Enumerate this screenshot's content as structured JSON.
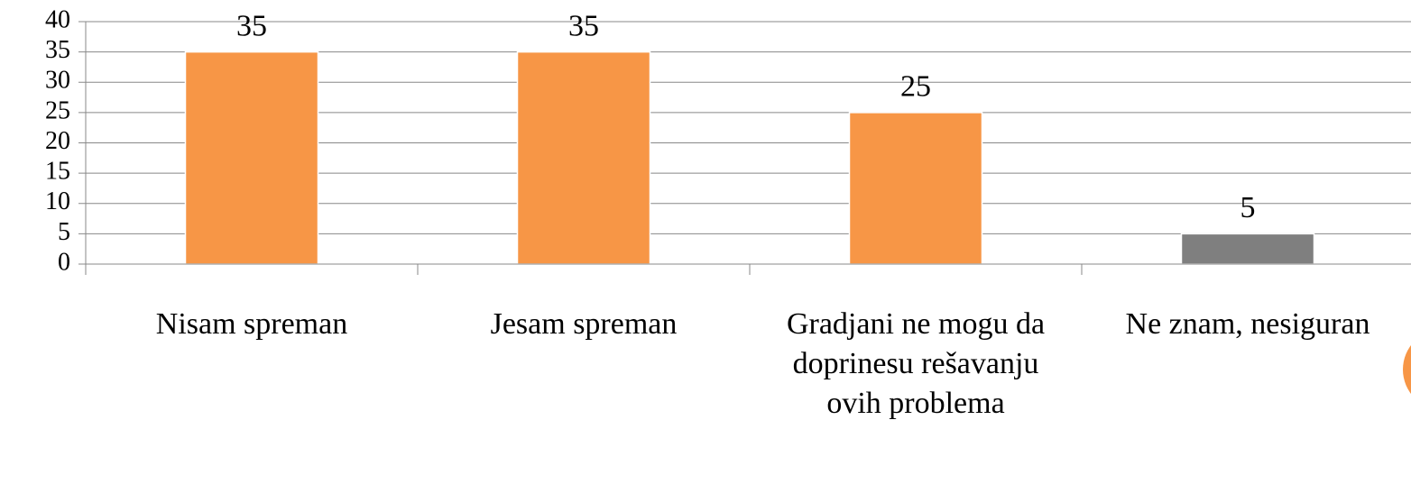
{
  "chart_data": {
    "type": "bar",
    "categories": [
      "Nisam spreman",
      "Jesam spreman",
      "Gradjani ne mogu da doprinesu rešavanju ovih problema",
      "Ne znam, nesiguran"
    ],
    "values": [
      35,
      35,
      25,
      5
    ],
    "colors": [
      "#F79646",
      "#F79646",
      "#F79646",
      "#7F7F7F"
    ],
    "ylim": [
      0,
      40
    ],
    "yticks": [
      0,
      5,
      10,
      15,
      20,
      25,
      30,
      35,
      40
    ],
    "grid": true
  }
}
